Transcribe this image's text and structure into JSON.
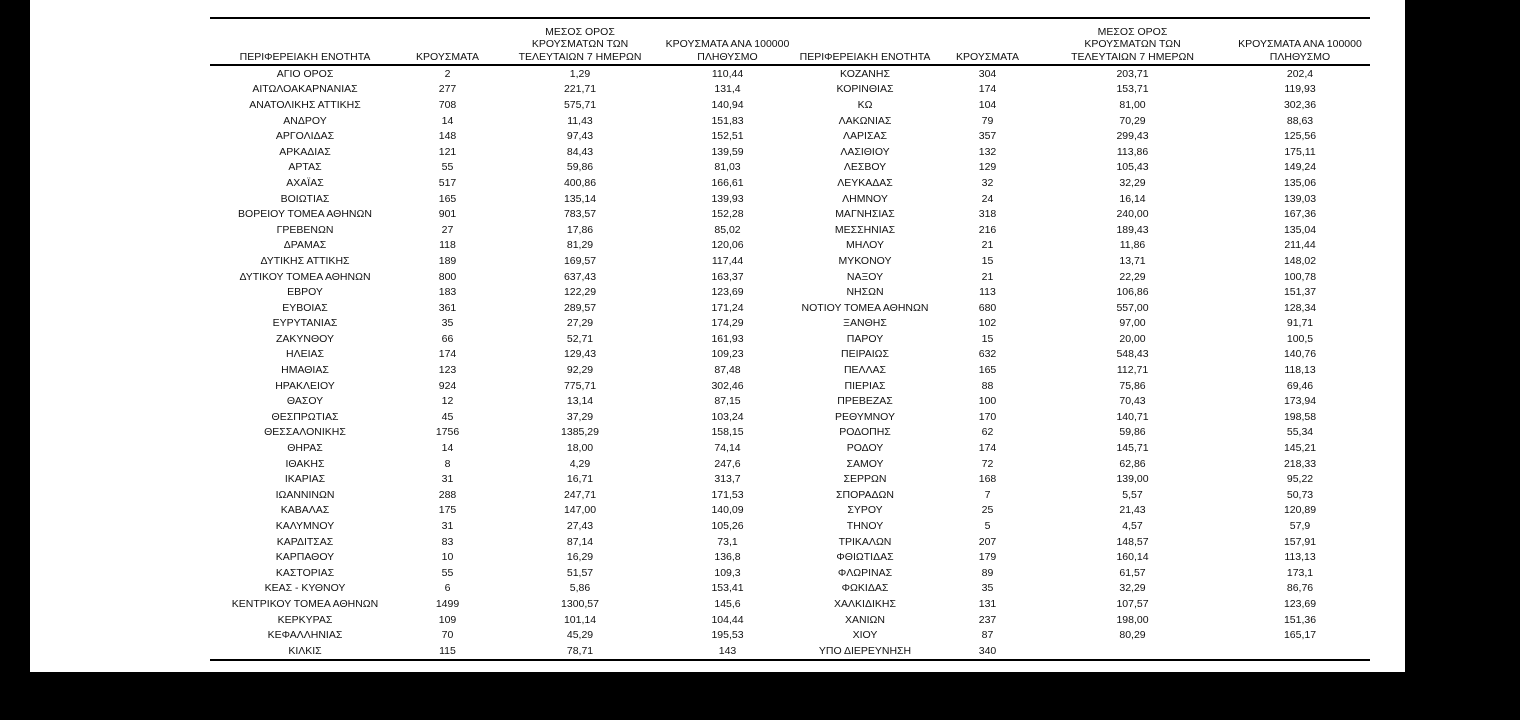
{
  "page": {
    "background_color": "#000000",
    "paper_color": "#ffffff",
    "text_color": "#111111"
  },
  "table": {
    "headers": {
      "region": "ΠΕΡΙΦΕΡΕΙΑΚΗ ΕΝΟΤΗΤΑ",
      "cases": "ΚΡΟΥΣΜΑΤΑ",
      "avg7_lines": [
        "ΜΕΣΟΣ ΟΡΟΣ",
        "ΚΡΟΥΣΜΑΤΩΝ ΤΩΝ",
        "ΤΕΛΕΥΤΑΙΩΝ 7 ΗΜΕΡΩΝ"
      ],
      "per100k_lines": [
        "ΚΡΟΥΣΜΑΤΑ ΑΝΑ 100000",
        "ΠΛΗΘΥΣΜΟ"
      ]
    },
    "left_rows": [
      [
        "ΑΓΙΟ ΟΡΟΣ",
        "2",
        "1,29",
        "110,44"
      ],
      [
        "ΑΙΤΩΛΟΑΚΑΡΝΑΝΙΑΣ",
        "277",
        "221,71",
        "131,4"
      ],
      [
        "ΑΝΑΤΟΛΙΚΗΣ ΑΤΤΙΚΗΣ",
        "708",
        "575,71",
        "140,94"
      ],
      [
        "ΑΝΔΡΟΥ",
        "14",
        "11,43",
        "151,83"
      ],
      [
        "ΑΡΓΟΛΙΔΑΣ",
        "148",
        "97,43",
        "152,51"
      ],
      [
        "ΑΡΚΑΔΙΑΣ",
        "121",
        "84,43",
        "139,59"
      ],
      [
        "ΑΡΤΑΣ",
        "55",
        "59,86",
        "81,03"
      ],
      [
        "ΑΧΑΪΑΣ",
        "517",
        "400,86",
        "166,61"
      ],
      [
        "ΒΟΙΩΤΙΑΣ",
        "165",
        "135,14",
        "139,93"
      ],
      [
        "ΒΟΡΕΙΟΥ ΤΟΜΕΑ ΑΘΗΝΩΝ",
        "901",
        "783,57",
        "152,28"
      ],
      [
        "ΓΡΕΒΕΝΩΝ",
        "27",
        "17,86",
        "85,02"
      ],
      [
        "ΔΡΑΜΑΣ",
        "118",
        "81,29",
        "120,06"
      ],
      [
        "ΔΥΤΙΚΗΣ ΑΤΤΙΚΗΣ",
        "189",
        "169,57",
        "117,44"
      ],
      [
        "ΔΥΤΙΚΟΥ ΤΟΜΕΑ ΑΘΗΝΩΝ",
        "800",
        "637,43",
        "163,37"
      ],
      [
        "ΕΒΡΟΥ",
        "183",
        "122,29",
        "123,69"
      ],
      [
        "ΕΥΒΟΙΑΣ",
        "361",
        "289,57",
        "171,24"
      ],
      [
        "ΕΥΡΥΤΑΝΙΑΣ",
        "35",
        "27,29",
        "174,29"
      ],
      [
        "ΖΑΚΥΝΘΟΥ",
        "66",
        "52,71",
        "161,93"
      ],
      [
        "ΗΛΕΙΑΣ",
        "174",
        "129,43",
        "109,23"
      ],
      [
        "ΗΜΑΘΙΑΣ",
        "123",
        "92,29",
        "87,48"
      ],
      [
        "ΗΡΑΚΛΕΙΟΥ",
        "924",
        "775,71",
        "302,46"
      ],
      [
        "ΘΑΣΟΥ",
        "12",
        "13,14",
        "87,15"
      ],
      [
        "ΘΕΣΠΡΩΤΙΑΣ",
        "45",
        "37,29",
        "103,24"
      ],
      [
        "ΘΕΣΣΑΛΟΝΙΚΗΣ",
        "1756",
        "1385,29",
        "158,15"
      ],
      [
        "ΘΗΡΑΣ",
        "14",
        "18,00",
        "74,14"
      ],
      [
        "ΙΘΑΚΗΣ",
        "8",
        "4,29",
        "247,6"
      ],
      [
        "ΙΚΑΡΙΑΣ",
        "31",
        "16,71",
        "313,7"
      ],
      [
        "ΙΩΑΝΝΙΝΩΝ",
        "288",
        "247,71",
        "171,53"
      ],
      [
        "ΚΑΒΑΛΑΣ",
        "175",
        "147,00",
        "140,09"
      ],
      [
        "ΚΑΛΥΜΝΟΥ",
        "31",
        "27,43",
        "105,26"
      ],
      [
        "ΚΑΡΔΙΤΣΑΣ",
        "83",
        "87,14",
        "73,1"
      ],
      [
        "ΚΑΡΠΑΘΟΥ",
        "10",
        "16,29",
        "136,8"
      ],
      [
        "ΚΑΣΤΟΡΙΑΣ",
        "55",
        "51,57",
        "109,3"
      ],
      [
        "ΚΕΑΣ - ΚΥΘΝΟΥ",
        "6",
        "5,86",
        "153,41"
      ],
      [
        "ΚΕΝΤΡΙΚΟΥ ΤΟΜΕΑ ΑΘΗΝΩΝ",
        "1499",
        "1300,57",
        "145,6"
      ],
      [
        "ΚΕΡΚΥΡΑΣ",
        "109",
        "101,14",
        "104,44"
      ],
      [
        "ΚΕΦΑΛΛΗΝΙΑΣ",
        "70",
        "45,29",
        "195,53"
      ],
      [
        "ΚΙΛΚΙΣ",
        "115",
        "78,71",
        "143"
      ]
    ],
    "right_rows": [
      [
        "ΚΟΖΑΝΗΣ",
        "304",
        "203,71",
        "202,4"
      ],
      [
        "ΚΟΡΙΝΘΙΑΣ",
        "174",
        "153,71",
        "119,93"
      ],
      [
        "ΚΩ",
        "104",
        "81,00",
        "302,36"
      ],
      [
        "ΛΑΚΩΝΙΑΣ",
        "79",
        "70,29",
        "88,63"
      ],
      [
        "ΛΑΡΙΣΑΣ",
        "357",
        "299,43",
        "125,56"
      ],
      [
        "ΛΑΣΙΘΙΟΥ",
        "132",
        "113,86",
        "175,11"
      ],
      [
        "ΛΕΣΒΟΥ",
        "129",
        "105,43",
        "149,24"
      ],
      [
        "ΛΕΥΚΑΔΑΣ",
        "32",
        "32,29",
        "135,06"
      ],
      [
        "ΛΗΜΝΟΥ",
        "24",
        "16,14",
        "139,03"
      ],
      [
        "ΜΑΓΝΗΣΙΑΣ",
        "318",
        "240,00",
        "167,36"
      ],
      [
        "ΜΕΣΣΗΝΙΑΣ",
        "216",
        "189,43",
        "135,04"
      ],
      [
        "ΜΗΛΟΥ",
        "21",
        "11,86",
        "211,44"
      ],
      [
        "ΜΥΚΟΝΟΥ",
        "15",
        "13,71",
        "148,02"
      ],
      [
        "ΝΑΞΟΥ",
        "21",
        "22,29",
        "100,78"
      ],
      [
        "ΝΗΣΩΝ",
        "113",
        "106,86",
        "151,37"
      ],
      [
        "ΝΟΤΙΟΥ ΤΟΜΕΑ ΑΘΗΝΩΝ",
        "680",
        "557,00",
        "128,34"
      ],
      [
        "ΞΑΝΘΗΣ",
        "102",
        "97,00",
        "91,71"
      ],
      [
        "ΠΑΡΟΥ",
        "15",
        "20,00",
        "100,5"
      ],
      [
        "ΠΕΙΡΑΙΩΣ",
        "632",
        "548,43",
        "140,76"
      ],
      [
        "ΠΕΛΛΑΣ",
        "165",
        "112,71",
        "118,13"
      ],
      [
        "ΠΙΕΡΙΑΣ",
        "88",
        "75,86",
        "69,46"
      ],
      [
        "ΠΡΕΒΕΖΑΣ",
        "100",
        "70,43",
        "173,94"
      ],
      [
        "ΡΕΘΥΜΝΟΥ",
        "170",
        "140,71",
        "198,58"
      ],
      [
        "ΡΟΔΟΠΗΣ",
        "62",
        "59,86",
        "55,34"
      ],
      [
        "ΡΟΔΟΥ",
        "174",
        "145,71",
        "145,21"
      ],
      [
        "ΣΑΜΟΥ",
        "72",
        "62,86",
        "218,33"
      ],
      [
        "ΣΕΡΡΩΝ",
        "168",
        "139,00",
        "95,22"
      ],
      [
        "ΣΠΟΡΑΔΩΝ",
        "7",
        "5,57",
        "50,73"
      ],
      [
        "ΣΥΡΟΥ",
        "25",
        "21,43",
        "120,89"
      ],
      [
        "ΤΗΝΟΥ",
        "5",
        "4,57",
        "57,9"
      ],
      [
        "ΤΡΙΚΑΛΩΝ",
        "207",
        "148,57",
        "157,91"
      ],
      [
        "ΦΘΙΩΤΙΔΑΣ",
        "179",
        "160,14",
        "113,13"
      ],
      [
        "ΦΛΩΡΙΝΑΣ",
        "89",
        "61,57",
        "173,1"
      ],
      [
        "ΦΩΚΙΔΑΣ",
        "35",
        "32,29",
        "86,76"
      ],
      [
        "ΧΑΛΚΙΔΙΚΗΣ",
        "131",
        "107,57",
        "123,69"
      ],
      [
        "ΧΑΝΙΩΝ",
        "237",
        "198,00",
        "151,36"
      ],
      [
        "ΧΙΟΥ",
        "87",
        "80,29",
        "165,17"
      ],
      [
        "ΥΠΟ ΔΙΕΡΕΥΝΗΣΗ",
        "340",
        "",
        ""
      ]
    ]
  }
}
